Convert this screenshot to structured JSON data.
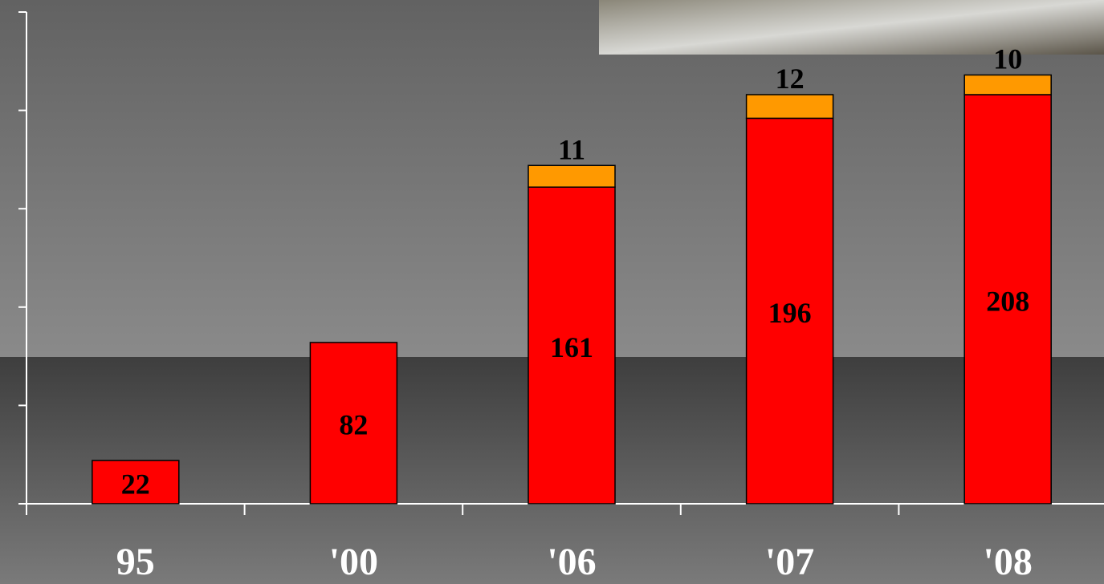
{
  "chart_data": {
    "type": "stacked_bar",
    "categories": [
      "95",
      "'00",
      "'06",
      "'07",
      "'08"
    ],
    "series": [
      {
        "color": "#ff0000",
        "values": [
          22,
          82,
          161,
          196,
          208
        ]
      },
      {
        "color": "#ff9900",
        "values": [
          null,
          null,
          11,
          12,
          10
        ]
      }
    ],
    "ylim": [
      0,
      250
    ],
    "yticks": [
      0,
      50,
      100,
      150,
      200,
      250
    ]
  }
}
